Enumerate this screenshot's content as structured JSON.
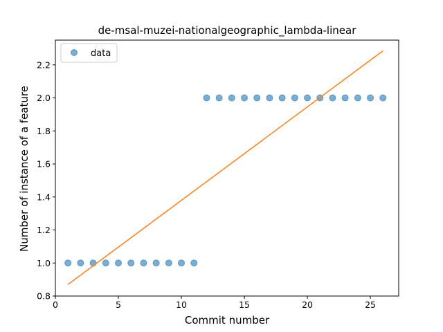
{
  "chart_data": {
    "type": "scatter",
    "title": "de-msal-muzei-nationalgeographic_lambda-linear",
    "xlabel": "Commit number",
    "ylabel": "Number of instance of a feature",
    "xlim": [
      0,
      27.25
    ],
    "ylim": [
      0.8,
      2.35
    ],
    "xticks": [
      0,
      5,
      10,
      15,
      20,
      25
    ],
    "yticks": [
      0.8,
      1.0,
      1.2,
      1.4,
      1.6,
      1.8,
      2.0,
      2.2
    ],
    "xtick_labels": [
      "0",
      "5",
      "10",
      "15",
      "20",
      "25"
    ],
    "ytick_labels": [
      "0.8",
      "1.0",
      "1.2",
      "1.4",
      "1.6",
      "1.8",
      "2.0",
      "2.2"
    ],
    "grid": false,
    "legend_position": "top-left",
    "series": [
      {
        "name": "data",
        "kind": "scatter",
        "color": "#1f77b4",
        "x": [
          1,
          2,
          3,
          4,
          5,
          6,
          7,
          8,
          9,
          10,
          11,
          12,
          13,
          14,
          15,
          16,
          17,
          18,
          19,
          20,
          21,
          22,
          23,
          24,
          25,
          26
        ],
        "y": [
          1,
          1,
          1,
          1,
          1,
          1,
          1,
          1,
          1,
          1,
          1,
          2,
          2,
          2,
          2,
          2,
          2,
          2,
          2,
          2,
          2,
          2,
          2,
          2,
          2,
          2
        ]
      },
      {
        "kind": "line",
        "color": "#ff7f0e",
        "x": [
          1,
          26
        ],
        "y": [
          0.87,
          2.285
        ]
      }
    ]
  }
}
